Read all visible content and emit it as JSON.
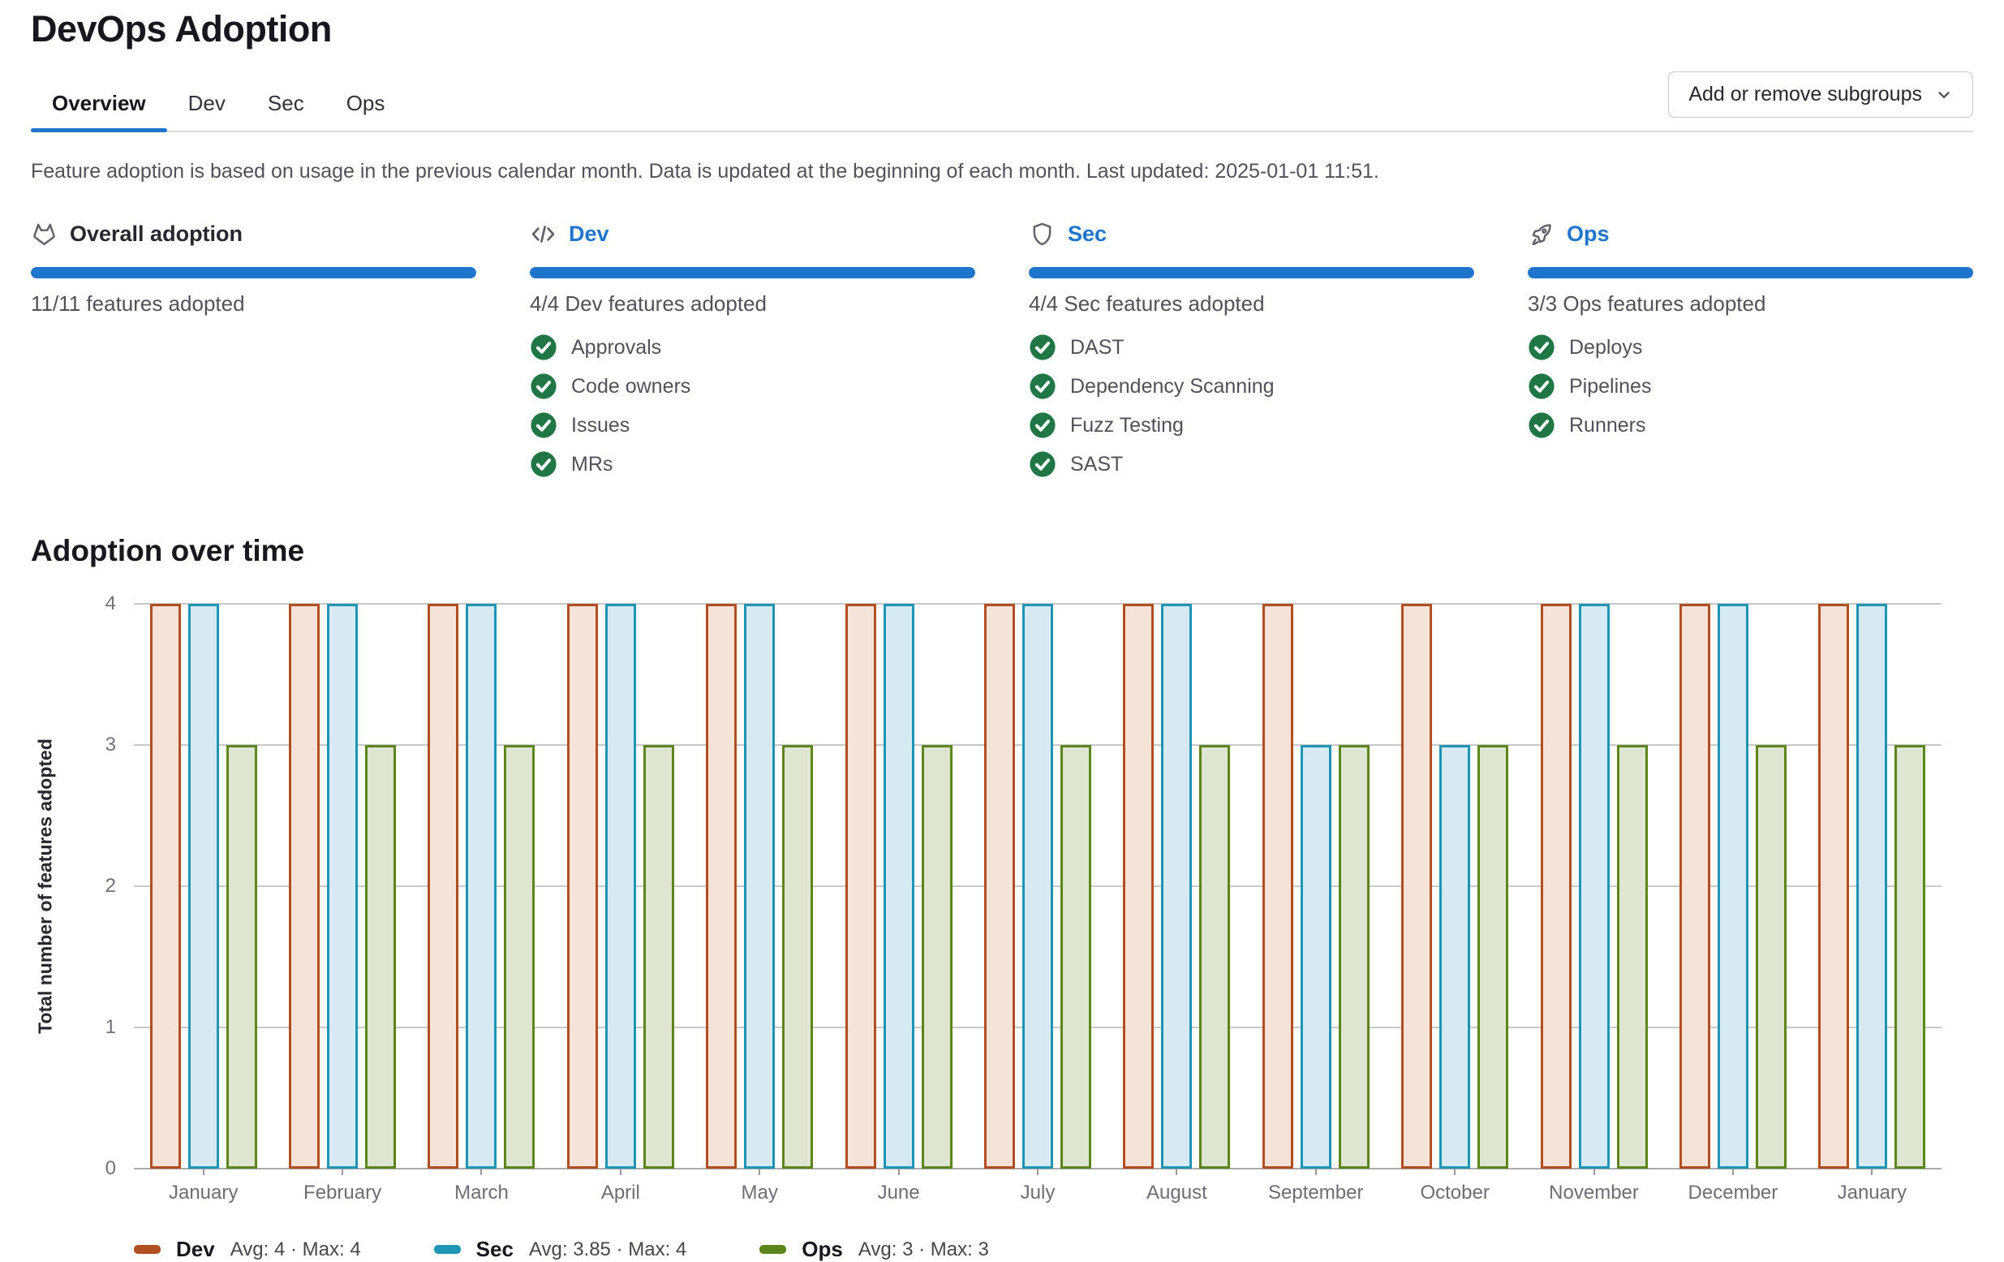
{
  "page_title": "DevOps Adoption",
  "tabs": [
    {
      "label": "Overview",
      "active": true
    },
    {
      "label": "Dev",
      "active": false
    },
    {
      "label": "Sec",
      "active": false
    },
    {
      "label": "Ops",
      "active": false
    }
  ],
  "subgroups_button": {
    "label": "Add or remove subgroups",
    "icon": "chevron-down-icon"
  },
  "info_text": "Feature adoption is based on usage in the previous calendar month. Data is updated at the beginning of each month. Last updated: 2025-01-01 11:51.",
  "colors": {
    "accent_blue": "#1f75cb",
    "check_green": "#217645",
    "dev_border": "#b14e22",
    "dev_fill": "#f5e3d9",
    "sec_border": "#1e95b4",
    "sec_fill": "#d8eaf1",
    "ops_border": "#5c851c",
    "ops_fill": "#dfe5d0"
  },
  "cards": [
    {
      "icon": "tanuki-icon",
      "title": "Overall adoption",
      "is_link": false,
      "progress_pct": 100,
      "caption": "11/11 features adopted",
      "features": []
    },
    {
      "icon": "code-icon",
      "title": "Dev",
      "is_link": true,
      "progress_pct": 100,
      "caption": "4/4 Dev features adopted",
      "features": [
        "Approvals",
        "Code owners",
        "Issues",
        "MRs"
      ]
    },
    {
      "icon": "shield-icon",
      "title": "Sec",
      "is_link": true,
      "progress_pct": 100,
      "caption": "4/4 Sec features adopted",
      "features": [
        "DAST",
        "Dependency Scanning",
        "Fuzz Testing",
        "SAST"
      ]
    },
    {
      "icon": "rocket-icon",
      "title": "Ops",
      "is_link": true,
      "progress_pct": 100,
      "caption": "3/3 Ops features adopted",
      "features": [
        "Deploys",
        "Pipelines",
        "Runners"
      ]
    }
  ],
  "chart_heading": "Adoption over time",
  "chart_data": {
    "type": "bar",
    "title": "Adoption over time",
    "xlabel": "",
    "ylabel": "Total number of features adopted",
    "ylim": [
      0,
      4
    ],
    "yticks": [
      0,
      1,
      2,
      3,
      4
    ],
    "grid": true,
    "legend_position": "bottom",
    "categories": [
      "January",
      "February",
      "March",
      "April",
      "May",
      "June",
      "July",
      "August",
      "September",
      "October",
      "November",
      "December",
      "January"
    ],
    "series": [
      {
        "name": "Dev",
        "values": [
          4,
          4,
          4,
          4,
          4,
          4,
          4,
          4,
          4,
          4,
          4,
          4,
          4
        ],
        "border_color": "#b14e22",
        "fill_color": "#f5e3d9",
        "legend_stats": "Avg: 4 · Max: 4"
      },
      {
        "name": "Sec",
        "values": [
          4,
          4,
          4,
          4,
          4,
          4,
          4,
          4,
          3,
          3,
          4,
          4,
          4
        ],
        "border_color": "#1e95b4",
        "fill_color": "#d8eaf1",
        "legend_stats": "Avg: 3.85 · Max: 4"
      },
      {
        "name": "Ops",
        "values": [
          3,
          3,
          3,
          3,
          3,
          3,
          3,
          3,
          3,
          3,
          3,
          3,
          3
        ],
        "border_color": "#5c851c",
        "fill_color": "#dfe5d0",
        "legend_stats": "Avg: 3 · Max: 3"
      }
    ]
  }
}
